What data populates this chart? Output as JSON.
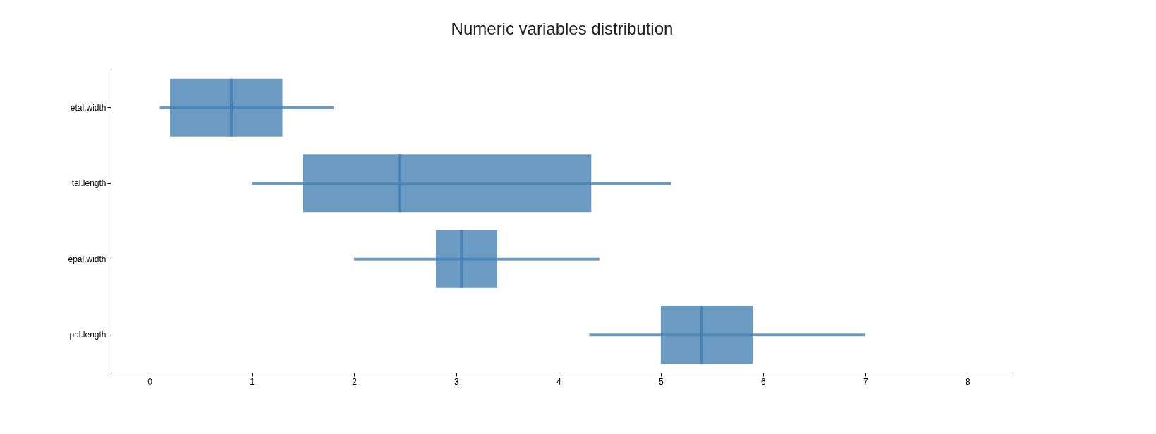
{
  "chart_data": {
    "type": "box",
    "title": "Numeric variables distribution",
    "orientation": "horizontal",
    "color": "#4682b4",
    "categories": [
      "etal.width",
      "tal.length",
      "epal.width",
      "pal.length"
    ],
    "boxes": [
      {
        "low": 0.1,
        "q1": 0.2,
        "median": 0.8,
        "q3": 1.3,
        "high": 1.8
      },
      {
        "low": 1.0,
        "q1": 1.5,
        "median": 2.45,
        "q3": 4.32,
        "high": 5.1
      },
      {
        "low": 2.0,
        "q1": 2.8,
        "median": 3.05,
        "q3": 3.4,
        "high": 4.4
      },
      {
        "low": 4.3,
        "q1": 5.0,
        "median": 5.4,
        "q3": 5.9,
        "high": 7.0
      }
    ],
    "xlim": [
      -0.38,
      8.45
    ],
    "xticks": [
      0,
      1,
      2,
      3,
      4,
      5,
      6,
      7,
      8
    ]
  }
}
